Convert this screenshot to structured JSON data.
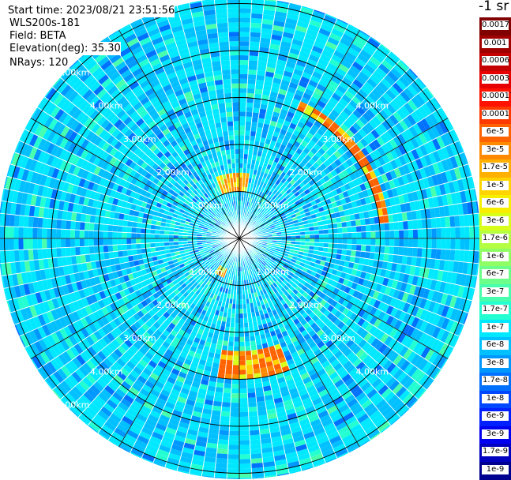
{
  "header": {
    "start_time": "Start time: 2023/08/21 23:51:56",
    "instrument": "WLS200s-181",
    "field": "Field: BETA",
    "elevation": "Elevation(deg): 35.30",
    "nrays": "NRays: 120"
  },
  "chart_data": {
    "type": "heatmap",
    "projection": "polar (PPI scan)",
    "field": "BETA",
    "elevation_deg": 35.3,
    "n_rays": 120,
    "range_ring_labels": [
      "1.00km",
      "2.00km",
      "3.00km",
      "4.00km",
      "5.00km"
    ],
    "range_rings_km": [
      1,
      2,
      3,
      4,
      5
    ],
    "max_range_km": 5.6,
    "colorbar": {
      "title": "-1 sr",
      "tick_labels": [
        "0.0017",
        "0.001",
        "0.0006",
        "0.0003",
        "0.00017",
        "0.0001",
        "6e-5",
        "3e-5",
        "1.7e-5",
        "1e-5",
        "6e-6",
        "3e-6",
        "1.7e-6",
        "1e-6",
        "6e-7",
        "3e-7",
        "1.7e-7",
        "1e-7",
        "6e-8",
        "3e-8",
        "1.7e-8",
        "1e-8",
        "6e-9",
        "3e-9",
        "1.7e-9",
        "1e-9"
      ],
      "colors": [
        "#800000",
        "#a00000",
        "#c40000",
        "#e60000",
        "#ff1200",
        "#ff3a00",
        "#ff6200",
        "#ff8a00",
        "#ffb000",
        "#ffd400",
        "#f6f000",
        "#d8ff1c",
        "#b4ff42",
        "#90ff66",
        "#6cff8a",
        "#48ffae",
        "#24ffd2",
        "#00e8ff",
        "#00c0ff",
        "#0098ff",
        "#0070ff",
        "#0048ff",
        "#0020ff",
        "#0000f0",
        "#0000c0",
        "#000090"
      ]
    },
    "background_level": "1e-7 to 3e-8 (blue/cyan)",
    "features": [
      {
        "description": "high backscatter arc",
        "azimuth_deg": [
          25,
          85
        ],
        "range_km": [
          3.0,
          3.2
        ],
        "peak": "6e-5"
      },
      {
        "description": "high backscatter arc",
        "azimuth_deg": [
          160,
          190
        ],
        "range_km": [
          2.4,
          3.0
        ],
        "peak": "6e-5"
      },
      {
        "description": "high backscatter arc",
        "azimuth_deg": [
          340,
          10
        ],
        "range_km": [
          1.0,
          1.4
        ],
        "peak": "3e-5"
      },
      {
        "description": "high backscatter patch",
        "azimuth_deg": [
          200,
          215
        ],
        "range_km": [
          0.7,
          0.9
        ],
        "peak": "3e-5"
      }
    ]
  }
}
